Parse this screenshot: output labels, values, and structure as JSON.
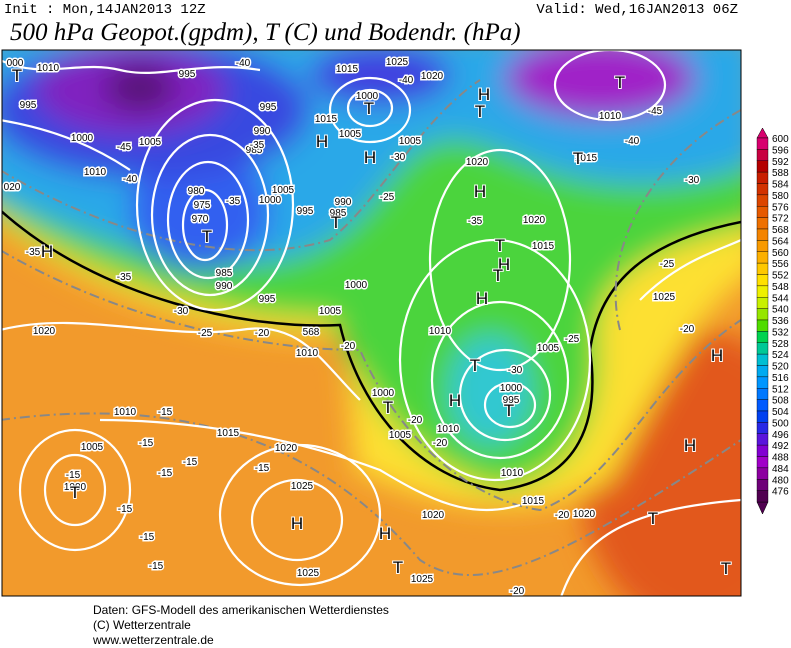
{
  "header": {
    "init": "Init : Mon,14JAN2013 12Z",
    "valid": "Valid: Wed,16JAN2013 06Z",
    "title": "500 hPa Geopot.(gpdm), T (C) und Bodendr. (hPa)"
  },
  "map": {
    "labels": [
      "000",
      "1010",
      "995",
      "1000",
      "1005",
      "1010",
      "020",
      "995",
      "995",
      "990",
      "985",
      "980",
      "975",
      "970",
      "1000",
      "1005",
      "995",
      "990",
      "985",
      "1015",
      "1025",
      "1020",
      "1000",
      "1015",
      "1005",
      "1005",
      "1020",
      "1020",
      "1015",
      "1025",
      "1020",
      "995",
      "985",
      "990",
      "1000",
      "1005",
      "1010",
      "1010",
      "1005",
      "1000",
      "1005",
      "1010",
      "1000",
      "995",
      "1010",
      "1015",
      "1020",
      "1020",
      "1010",
      "1005",
      "1000",
      "1015",
      "1020",
      "1025",
      "1025",
      "1025",
      "1010",
      "1015",
      "-40",
      "-40",
      "-45",
      "-40",
      "-35",
      "-30",
      "-25",
      "-35",
      "-35",
      "-30",
      "-25",
      "-20",
      "-20",
      "-25",
      "-30",
      "-20",
      "-20",
      "-15",
      "-15",
      "-15",
      "-15",
      "-15",
      "-15",
      "-15",
      "-15",
      "-15",
      "-20",
      "-20",
      "-25",
      "-20",
      "-30",
      "-40",
      "-45",
      "-35",
      "568",
      "-35"
    ],
    "centers": [
      "T",
      "T",
      "T",
      "H",
      "H",
      "T",
      "T",
      "T",
      "H",
      "T",
      "H",
      "H",
      "T",
      "H",
      "T",
      "T",
      "H",
      "T",
      "H",
      "T",
      "H",
      "H",
      "T",
      "T",
      "H",
      "H",
      "T",
      "T"
    ]
  },
  "legend": {
    "values": [
      600,
      596,
      592,
      588,
      584,
      580,
      576,
      572,
      568,
      564,
      560,
      556,
      552,
      548,
      544,
      540,
      536,
      532,
      528,
      524,
      520,
      516,
      512,
      508,
      504,
      500,
      496,
      492,
      488,
      484,
      480,
      476
    ],
    "colors": [
      "#d8006e",
      "#c80040",
      "#b40000",
      "#c81e00",
      "#d23200",
      "#dc4600",
      "#e65a00",
      "#ee7000",
      "#f48400",
      "#f89a00",
      "#fcb000",
      "#fec800",
      "#ffe000",
      "#eef000",
      "#c8f000",
      "#96e600",
      "#50dc00",
      "#00d250",
      "#00c896",
      "#00bed2",
      "#00aaf0",
      "#0096ff",
      "#0078ff",
      "#005aff",
      "#0040f0",
      "#2828e6",
      "#5a14dc",
      "#8200d2",
      "#a000c8",
      "#8c00a0",
      "#6e0078",
      "#500050"
    ]
  },
  "footer": {
    "lines": [
      "Daten: GFS-Modell des amerikanischen Wetterdienstes",
      "(C) Wetterzentrale",
      "www.wetterzentrale.de"
    ]
  }
}
